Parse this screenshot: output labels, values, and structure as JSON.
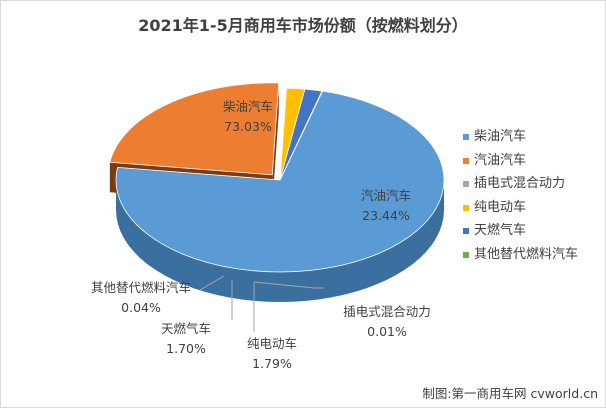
{
  "chart_data": {
    "type": "pie",
    "title": "2021年1-5月商用车市场份额（按燃料划分）",
    "slices": [
      {
        "name": "柴油汽车",
        "value": 73.03,
        "label": "73.03%",
        "color": "#5b9bd5",
        "dark": "#3a6f9f"
      },
      {
        "name": "汽油汽车",
        "value": 23.44,
        "label": "23.44%",
        "color": "#ed7d31",
        "dark": "#7a3d12"
      },
      {
        "name": "插电式混合动力",
        "value": 0.01,
        "label": "0.01%",
        "color": "#a5a5a5",
        "dark": "#6e6e6e"
      },
      {
        "name": "纯电动车",
        "value": 1.79,
        "label": "1.79%",
        "color": "#ffc000",
        "dark": "#8a6a10"
      },
      {
        "name": "天燃气车",
        "value": 1.7,
        "label": "1.70%",
        "color": "#4472c4",
        "dark": "#283f70"
      },
      {
        "name": "其他替代燃料汽车",
        "value": 0.04,
        "label": "0.04%",
        "color": "#70ad47",
        "dark": "#3f6a24"
      }
    ],
    "legend_position": "right"
  },
  "credit": "制图:第一商用车网 cvworld.cn"
}
